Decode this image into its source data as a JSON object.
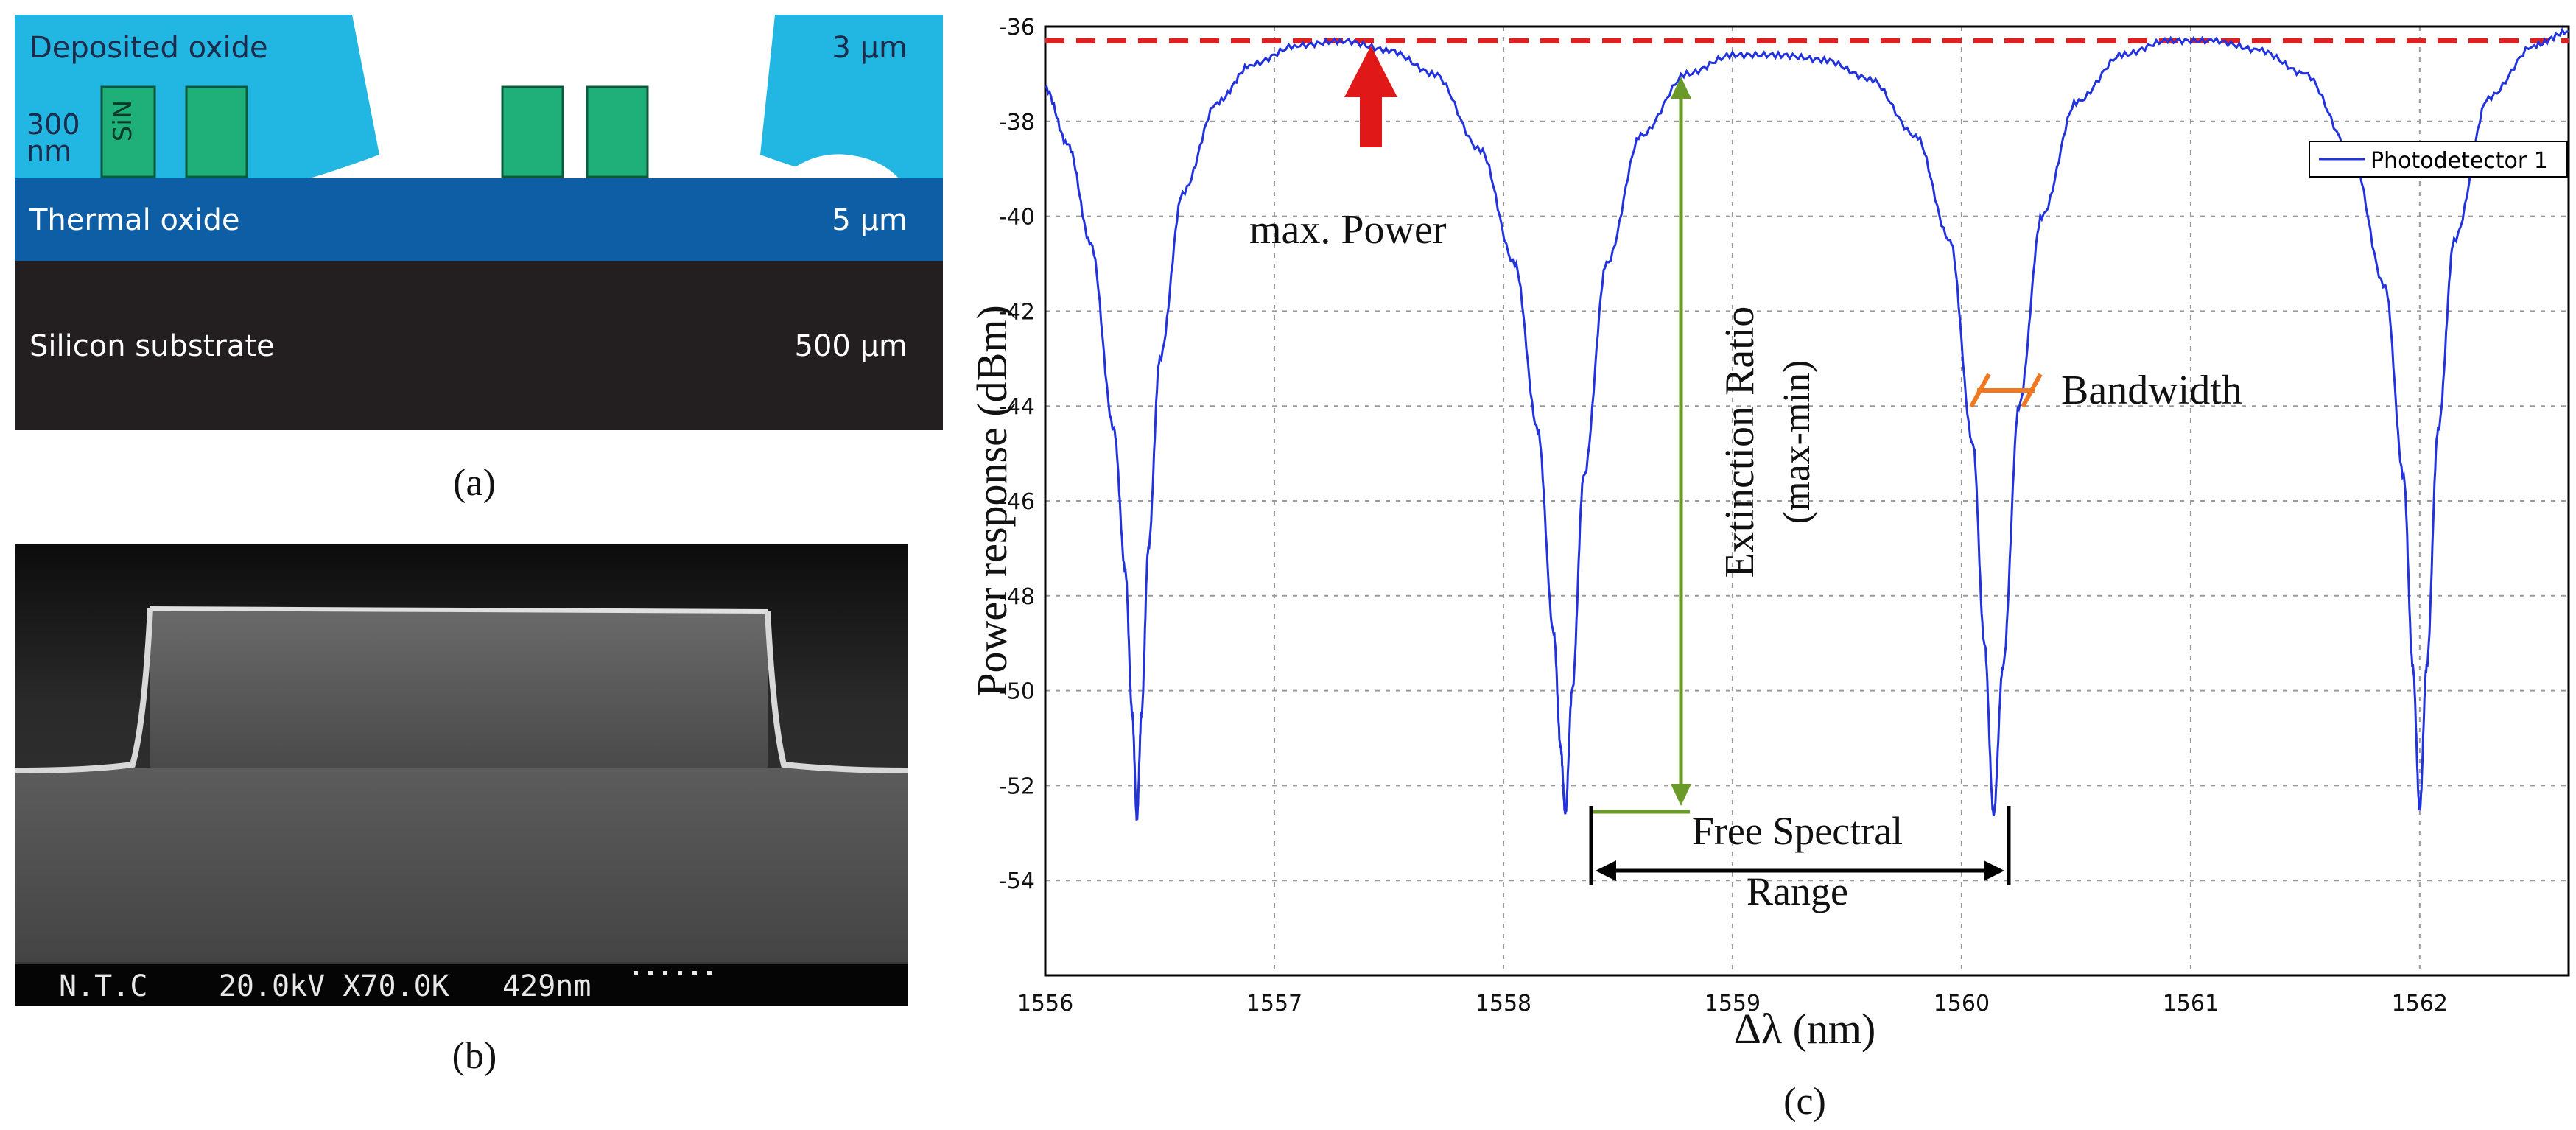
{
  "panel_a": {
    "caption": "(a)",
    "layers": {
      "deposited_oxide": "Deposited oxide",
      "deposited_thickness": "3 µm",
      "sin_height_value": "300",
      "sin_height_unit": "nm",
      "sin_label": "SiN",
      "thermal_oxide": "Thermal oxide",
      "thermal_thickness": "5 µm",
      "substrate": "Silicon substrate",
      "substrate_thickness": "500 µm"
    },
    "colors": {
      "deposited": "#22b6e2",
      "thermal": "#0d5ea4",
      "substrate": "#231f20",
      "sin": "#1fb07a"
    }
  },
  "panel_b": {
    "caption": "(b)",
    "sem_info": "N.T.C    20.0kV X70.0K   429nm"
  },
  "panel_c": {
    "caption": "(c)",
    "annotations": {
      "max_power": "max. Power",
      "extinction_ratio_line1": "Extinction Ratio",
      "extinction_ratio_line2": "(max-min)",
      "bandwidth": "Bandwidth",
      "fsr_line1": "Free Spectral",
      "fsr_line2": "Range"
    },
    "colors": {
      "trace": "#2233dd",
      "max_line": "#e02020",
      "extinction": "#6a9a2a",
      "bandwidth": "#f07820",
      "fsr": "#000000"
    }
  },
  "chart_data": {
    "type": "line",
    "title": "",
    "xlabel": "Δλ (nm)",
    "ylabel": "Power response (dBm)",
    "xlim": [
      1556,
      1562.65
    ],
    "ylim": [
      -56,
      -36
    ],
    "x_ticks": [
      "1556",
      "1557",
      "1558",
      "1559",
      "1560",
      "1561",
      "1562"
    ],
    "y_ticks": [
      "-36",
      "-38",
      "-40",
      "-42",
      "-44",
      "-46",
      "-48",
      "-50",
      "-52",
      "-54"
    ],
    "grid": true,
    "legend": {
      "position": "top-right",
      "entries": [
        "Photodetector 1"
      ]
    },
    "max_power_level": -36.3,
    "resonances": [
      {
        "x": 1556.4,
        "y": -52.7
      },
      {
        "x": 1558.27,
        "y": -52.6
      },
      {
        "x": 1560.14,
        "y": -52.6
      },
      {
        "x": 1562.0,
        "y": -52.5
      }
    ],
    "series": [
      {
        "name": "Photodetector 1",
        "x": [
          1556.0,
          1556.1,
          1556.2,
          1556.3,
          1556.35,
          1556.38,
          1556.4,
          1556.42,
          1556.45,
          1556.5,
          1556.6,
          1556.75,
          1556.9,
          1557.1,
          1557.3,
          1557.5,
          1557.7,
          1557.9,
          1558.05,
          1558.15,
          1558.22,
          1558.25,
          1558.27,
          1558.3,
          1558.35,
          1558.45,
          1558.6,
          1558.8,
          1559.0,
          1559.2,
          1559.4,
          1559.6,
          1559.8,
          1559.95,
          1560.05,
          1560.1,
          1560.14,
          1560.18,
          1560.25,
          1560.35,
          1560.5,
          1560.7,
          1560.9,
          1561.1,
          1561.3,
          1561.5,
          1561.7,
          1561.85,
          1561.93,
          1561.97,
          1562.0,
          1562.03,
          1562.08,
          1562.15,
          1562.3,
          1562.5,
          1562.65
        ],
        "y": [
          -37.3,
          -38.5,
          -40.6,
          -44.5,
          -47.5,
          -50.5,
          -52.7,
          -50.5,
          -47.0,
          -43.0,
          -39.5,
          -37.6,
          -36.8,
          -36.4,
          -36.3,
          -36.5,
          -37.0,
          -38.6,
          -41.0,
          -44.5,
          -48.8,
          -51.2,
          -52.6,
          -50.0,
          -45.5,
          -41.0,
          -38.3,
          -37.0,
          -36.6,
          -36.6,
          -36.7,
          -37.1,
          -38.3,
          -40.5,
          -44.8,
          -49.0,
          -52.6,
          -49.5,
          -44.0,
          -40.0,
          -37.6,
          -36.6,
          -36.3,
          -36.3,
          -36.5,
          -37.0,
          -38.6,
          -41.5,
          -45.5,
          -49.5,
          -52.5,
          -49.5,
          -44.5,
          -40.5,
          -37.5,
          -36.4,
          -36.1
        ]
      }
    ]
  }
}
